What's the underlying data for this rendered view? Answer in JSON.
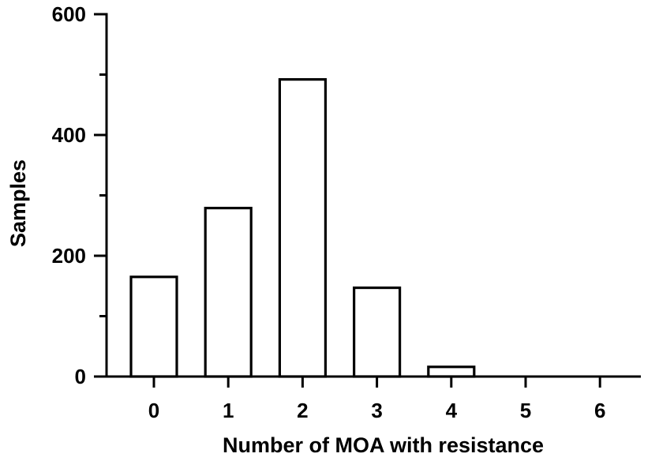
{
  "chart_data": {
    "type": "bar",
    "categories": [
      "0",
      "1",
      "2",
      "3",
      "4",
      "5",
      "6"
    ],
    "values": [
      165,
      279,
      492,
      147,
      16,
      0,
      0
    ],
    "xlabel": "Number of MOA with resistance",
    "ylabel": "Samples",
    "ylim": [
      0,
      600
    ],
    "y_ticks": [
      "0",
      "200",
      "400",
      "600"
    ],
    "grid": false,
    "bar_fill": "#ffffff",
    "bar_stroke": "#000000"
  }
}
